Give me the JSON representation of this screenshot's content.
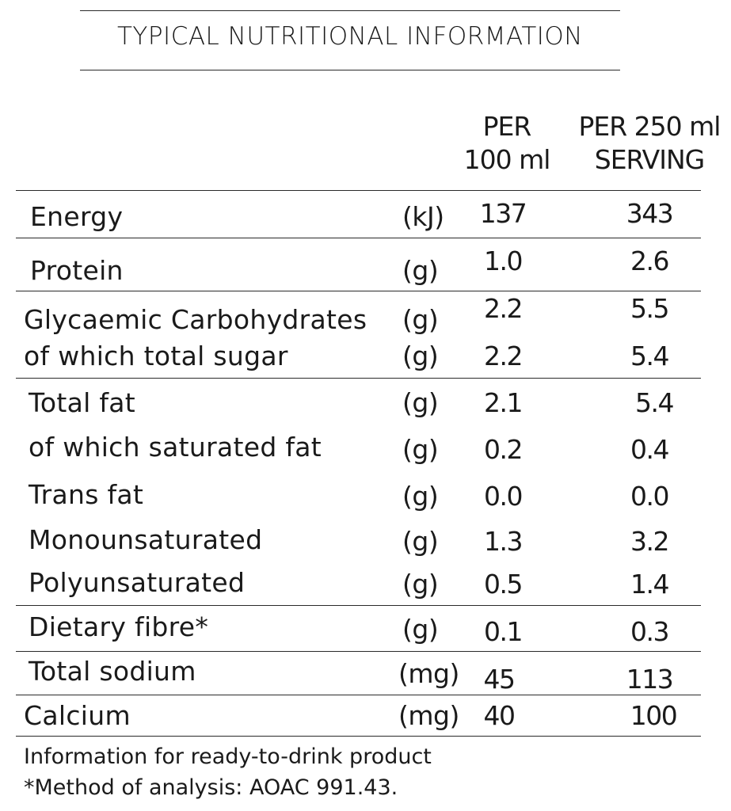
{
  "title": "TYPICAL NUTRITIONAL INFORMATION",
  "columns": {
    "per100_line1": "PER",
    "per100_line2": "100 ml",
    "per250_line1": "PER 250 ml",
    "per250_line2": "SERVING"
  },
  "rows": [
    {
      "label": "Energy",
      "unit": "(kJ)",
      "per100": "137",
      "per250": "343"
    },
    {
      "label": "Protein",
      "unit": "(g)",
      "per100": "1.0",
      "per250": "2.6"
    },
    {
      "label": "Glycaemic Carbohydrates",
      "unit": "(g)",
      "per100": "2.2",
      "per250": "5.5"
    },
    {
      "label": "of which total sugar",
      "unit": "(g)",
      "per100": "2.2",
      "per250": "5.4"
    },
    {
      "label": "Total fat",
      "unit": "(g)",
      "per100": "2.1",
      "per250": "5.4"
    },
    {
      "label": "of which saturated fat",
      "unit": "(g)",
      "per100": "0.2",
      "per250": "0.4"
    },
    {
      "label": "Trans fat",
      "unit": "(g)",
      "per100": "0.0",
      "per250": "0.0"
    },
    {
      "label": "Monounsaturated",
      "unit": "(g)",
      "per100": "1.3",
      "per250": "3.2"
    },
    {
      "label": "Polyunsaturated",
      "unit": "(g)",
      "per100": "0.5",
      "per250": "1.4"
    },
    {
      "label": "Dietary fibre*",
      "unit": "(g)",
      "per100": "0.1",
      "per250": "0.3"
    },
    {
      "label": "Total sodium",
      "unit": "(mg)",
      "per100": "45",
      "per250": "113"
    },
    {
      "label": "Calcium",
      "unit": "(mg)",
      "per100": "40",
      "per250": "100"
    }
  ],
  "footnotes": [
    "Information for ready-to-drink product",
    "*Method of analysis: AOAC 991.43."
  ]
}
